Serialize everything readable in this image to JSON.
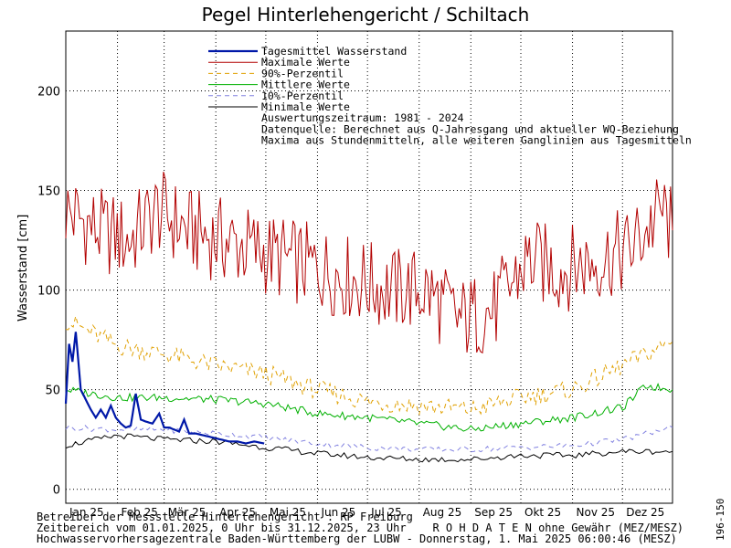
{
  "chart_data": {
    "type": "line",
    "title": "Pegel Hinterlehengericht / Schiltach",
    "ylabel": "Wasserstand [cm]",
    "xlabel": "",
    "x_domain": [
      "2025-01-01",
      "2025-12-31"
    ],
    "ylim": [
      -7,
      230
    ],
    "yticks": [
      0,
      50,
      100,
      150,
      200
    ],
    "month_labels": [
      "Jan 25",
      "Feb 25",
      "Mär 25",
      "Apr 25",
      "Mai 25",
      "Jun 25",
      "Jul 25",
      "Aug 25",
      "Sep 25",
      "Okt 25",
      "Nov 25",
      "Dez 25"
    ],
    "grid": true,
    "legend_position": "top-center",
    "legend_notes": [
      "Auswertungszeitraum: 1981 - 2024",
      "Datenquelle: Berechnet aus Q-Jahresgang und aktueller WQ-Beziehung",
      "Maxima aus Stundenmitteln, alle weiteren Ganglinien aus Tagesmitteln"
    ],
    "series": [
      {
        "name": "Tagesmittel Wasserstand",
        "color": "#0018a8",
        "style": "solid-thick",
        "x": [
          "2025-01-01",
          "2025-01-03",
          "2025-01-05",
          "2025-01-07",
          "2025-01-10",
          "2025-01-13",
          "2025-01-16",
          "2025-01-19",
          "2025-01-22",
          "2025-01-25",
          "2025-01-28",
          "2025-01-31",
          "2025-02-03",
          "2025-02-06",
          "2025-02-09",
          "2025-02-12",
          "2025-02-15",
          "2025-02-18",
          "2025-02-22",
          "2025-02-26",
          "2025-03-01",
          "2025-03-04",
          "2025-03-07",
          "2025-03-10",
          "2025-03-13",
          "2025-03-16",
          "2025-03-20",
          "2025-03-25",
          "2025-03-30",
          "2025-04-04",
          "2025-04-09",
          "2025-04-14",
          "2025-04-19",
          "2025-04-24",
          "2025-04-30"
        ],
        "y": [
          43,
          73,
          64,
          79,
          50,
          45,
          40,
          36,
          40,
          36,
          42,
          36,
          33,
          31,
          32,
          48,
          35,
          34,
          33,
          38,
          31,
          31,
          30,
          29,
          35,
          28,
          28,
          27,
          26,
          25,
          24,
          24,
          23,
          24,
          23
        ]
      },
      {
        "name": "Maximale Werte",
        "color": "#b20000",
        "style": "solid",
        "x": [
          "2025-01-01",
          "2025-01-20",
          "2025-02-08",
          "2025-02-25",
          "2025-03-15",
          "2025-04-05",
          "2025-04-25",
          "2025-05-15",
          "2025-06-05",
          "2025-06-25",
          "2025-07-15",
          "2025-08-05",
          "2025-08-25",
          "2025-09-15",
          "2025-10-05",
          "2025-10-25",
          "2025-11-15",
          "2025-12-05",
          "2025-12-25",
          "2025-12-31"
        ],
        "y": [
          140,
          130,
          125,
          140,
          130,
          125,
          120,
          115,
          110,
          105,
          100,
          100,
          85,
          90,
          115,
          110,
          115,
          120,
          140,
          130
        ]
      },
      {
        "name": "90%-Perzentil",
        "color": "#e0a000",
        "style": "dashed",
        "x": [
          "2025-01-01",
          "2025-02-01",
          "2025-03-01",
          "2025-04-01",
          "2025-05-01",
          "2025-06-01",
          "2025-07-01",
          "2025-08-01",
          "2025-09-01",
          "2025-10-01",
          "2025-11-01",
          "2025-12-01",
          "2025-12-31"
        ],
        "y": [
          85,
          72,
          68,
          62,
          58,
          50,
          44,
          42,
          40,
          46,
          50,
          62,
          74
        ]
      },
      {
        "name": "Mittlere Werte",
        "color": "#00b000",
        "style": "solid",
        "x": [
          "2025-01-01",
          "2025-02-01",
          "2025-03-01",
          "2025-04-01",
          "2025-05-01",
          "2025-06-01",
          "2025-07-01",
          "2025-08-01",
          "2025-09-01",
          "2025-10-01",
          "2025-11-01",
          "2025-12-01",
          "2025-12-15",
          "2025-12-31"
        ],
        "y": [
          50,
          46,
          46,
          45,
          43,
          38,
          36,
          33,
          30,
          33,
          36,
          41,
          52,
          50
        ]
      },
      {
        "name": "10%-Perzentil",
        "color": "#8080e0",
        "style": "dashed",
        "x": [
          "2025-01-01",
          "2025-02-01",
          "2025-03-01",
          "2025-04-01",
          "2025-05-01",
          "2025-06-01",
          "2025-07-01",
          "2025-08-01",
          "2025-09-01",
          "2025-10-01",
          "2025-11-01",
          "2025-12-01",
          "2025-12-31"
        ],
        "y": [
          31,
          30,
          30,
          28,
          26,
          23,
          21,
          20,
          20,
          21,
          22,
          25,
          31
        ]
      },
      {
        "name": "Minimale Werte",
        "color": "#000000",
        "style": "solid",
        "x": [
          "2025-01-01",
          "2025-02-01",
          "2025-03-01",
          "2025-04-01",
          "2025-05-01",
          "2025-06-01",
          "2025-07-01",
          "2025-08-01",
          "2025-09-01",
          "2025-10-01",
          "2025-11-01",
          "2025-12-01",
          "2025-12-31"
        ],
        "y": [
          22,
          27,
          25,
          24,
          21,
          18,
          16,
          15,
          15,
          17,
          17,
          19,
          19
        ]
      }
    ]
  },
  "footer": {
    "line1": "Betreiber der Messstelle Hinterlehengericht : RP Freiburg",
    "line2": "Zeitbereich vom 01.01.2025, 0 Uhr bis 31.12.2025, 23 Uhr    R O H D A T E N ohne Gewähr (MEZ/MESZ)",
    "line3": "Hochwasservorhersagezentrale Baden-Württemberg der LUBW - Donnerstag, 1. Mai 2025 06:00:46 (MESZ)",
    "side_code": "196-150"
  }
}
